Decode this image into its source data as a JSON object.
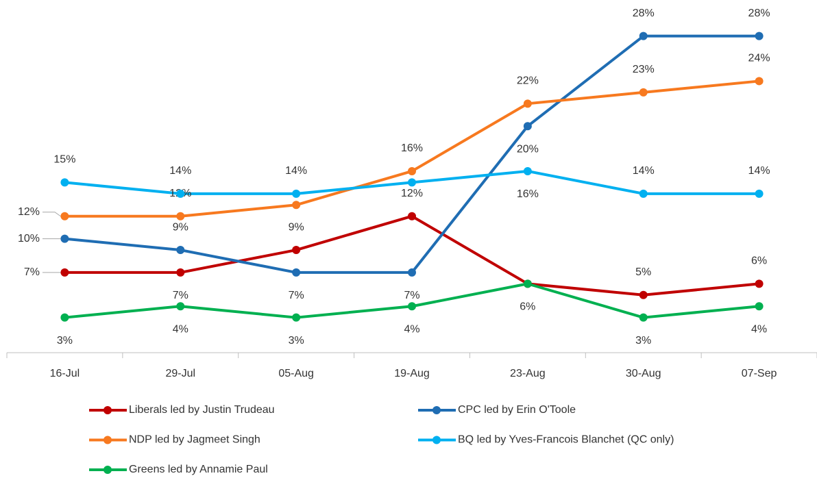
{
  "chart_data": {
    "type": "line",
    "categories": [
      "16-Jul",
      "29-Jul",
      "05-Aug",
      "19-Aug",
      "23-Aug",
      "30-Aug",
      "07-Sep"
    ],
    "series": [
      {
        "name": "Liberals led by Justin Trudeau",
        "color": "#c00000",
        "values": [
          7,
          7,
          9,
          12,
          6,
          5,
          6
        ],
        "value_labels": [
          "7%",
          "7%",
          "9%",
          "12%",
          null,
          "5%",
          "6%"
        ]
      },
      {
        "name": "CPC led by Erin O'Toole",
        "color": "#1f6db3",
        "values": [
          10,
          9,
          7,
          7,
          20,
          28,
          28
        ],
        "value_labels": [
          "10%",
          "9%",
          "7%",
          "7%",
          "20%",
          "28%",
          "28%"
        ]
      },
      {
        "name": "NDP led by Jagmeet Singh",
        "color": "#f7791f",
        "values": [
          12,
          12,
          13,
          16,
          22,
          23,
          24
        ],
        "value_labels": [
          "12%",
          "12%",
          null,
          "16%",
          "22%",
          "23%",
          "24%"
        ]
      },
      {
        "name": "BQ led by Yves-Francois Blanchet (QC only)",
        "color": "#00b0f0",
        "values": [
          15,
          14,
          14,
          15,
          16,
          14,
          14
        ],
        "value_labels": [
          "15%",
          "14%",
          "14%",
          null,
          "16%",
          "14%",
          "14%"
        ]
      },
      {
        "name": "Greens led by Annamie Paul",
        "color": "#00b050",
        "values": [
          3,
          4,
          3,
          4,
          6,
          3,
          4
        ],
        "value_labels": [
          "3%",
          "4%",
          "3%",
          "4%",
          "6%",
          "3%",
          "4%"
        ]
      }
    ]
  }
}
